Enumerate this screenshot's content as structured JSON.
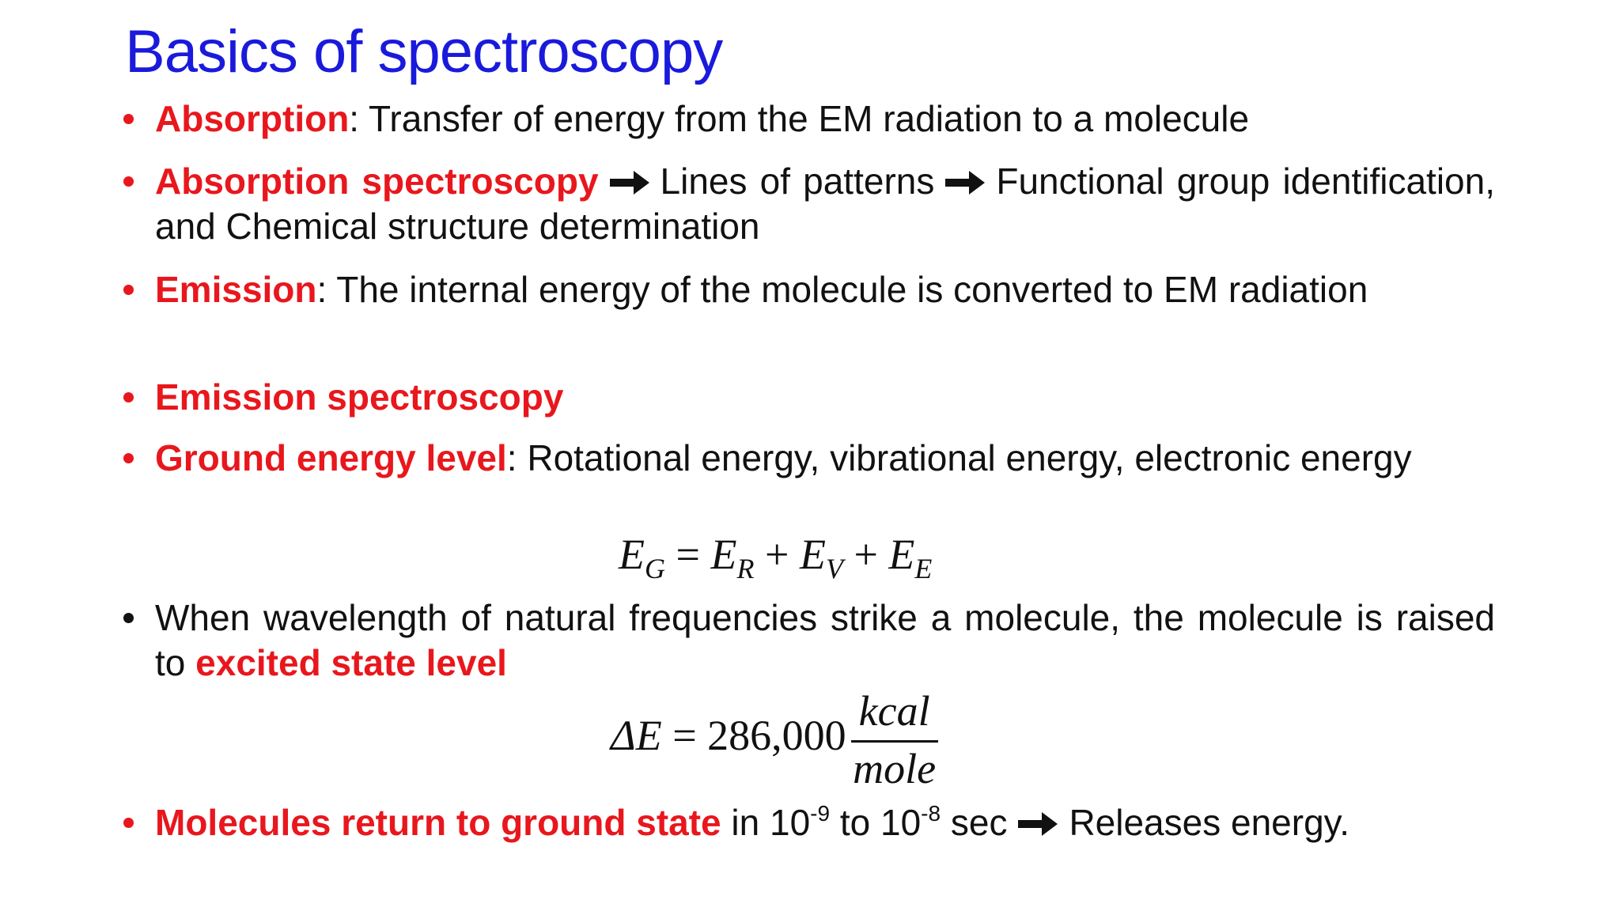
{
  "title": "Basics of spectroscopy",
  "bullets": [
    {
      "term": "Absorption",
      "text": ": Transfer of energy from the EM radiation to a molecule"
    },
    {
      "term": "Absorption spectroscopy",
      "steps": [
        "Lines of patterns",
        "Functional group identification, and Chemical structure determination"
      ]
    },
    {
      "term": "Emission",
      "text": ": The internal energy of the molecule is converted to EM radiation"
    },
    {
      "term": "Emission spectroscopy"
    },
    {
      "term": "Ground energy level",
      "text": ": Rotational energy, vibrational energy, electronic energy"
    },
    {
      "text": "When wavelength of natural frequencies strike a molecule, the molecule is raised to ",
      "term": "excited state level"
    },
    {
      "term": "Molecules return to ground state",
      "text": [
        "in 10",
        "-9",
        " to 10",
        "-8",
        " sec"
      ],
      "step": "Releases energy."
    }
  ],
  "equation_1": {
    "terms": [
      {
        "symbol": "E",
        "subscript": "G"
      },
      {
        "symbol": "E",
        "subscript": "R"
      },
      {
        "symbol": "E",
        "subscript": "V"
      },
      {
        "symbol": "E",
        "subscript": "E"
      }
    ],
    "operators": [
      "=",
      "+",
      "+"
    ]
  },
  "equation_2": {
    "left": "ΔE",
    "operator": "=",
    "value": "286,000",
    "numerator": "kcal",
    "denominator": "mole"
  }
}
